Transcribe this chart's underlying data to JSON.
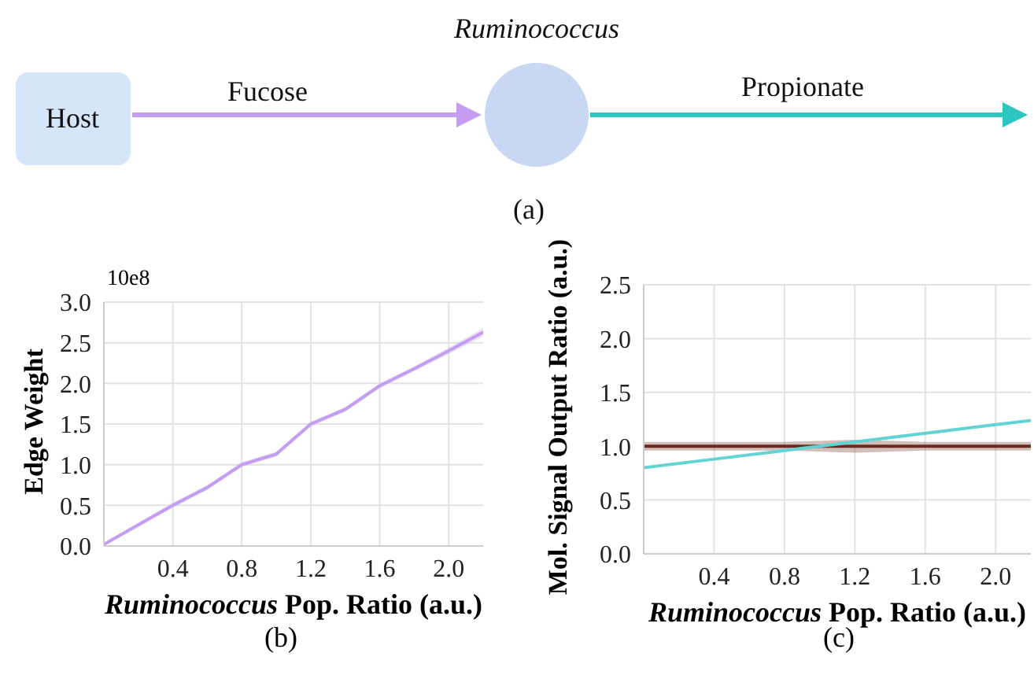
{
  "chart_data": [
    {
      "type": "other",
      "annotations": [
        "Ruminococcus",
        "Host",
        "Fucose",
        "Propionate",
        "(a)"
      ]
    },
    {
      "type": "line",
      "xlabel": "Ruminococcus Pop. Ratio (a.u.)",
      "ylabel": "Edge Weight",
      "annotations": [
        "10e8",
        "(b)"
      ],
      "xlim": [
        0,
        2.2
      ],
      "xticks": [
        0.4,
        0.8,
        1.2,
        1.6,
        {
          "value": 2,
          "label": "2.0"
        }
      ],
      "ylim": [
        0,
        3
      ],
      "yticks": [
        {
          "value": 0,
          "label": "0.0"
        },
        0.5,
        {
          "value": 1,
          "label": "1.0"
        },
        1.5,
        {
          "value": 2,
          "label": "2.0"
        },
        2.5,
        {
          "value": 3,
          "label": "3.0"
        }
      ],
      "grid": true,
      "x": [
        0,
        0.2,
        0.4,
        0.6,
        0.8,
        1.0,
        1.2,
        1.4,
        1.6,
        1.8,
        2.0,
        2.2
      ],
      "series": [
        {
          "color": "#c39ef0",
          "values": [
            0.02,
            0.26,
            0.5,
            0.72,
            1.0,
            1.13,
            1.5,
            1.68,
            1.97,
            2.18,
            2.4,
            2.63
          ],
          "lower": [
            0.0,
            0.23,
            0.47,
            0.69,
            0.97,
            1.1,
            1.47,
            1.65,
            1.94,
            2.15,
            2.36,
            2.58
          ],
          "upper": [
            0.04,
            0.29,
            0.53,
            0.75,
            1.03,
            1.16,
            1.53,
            1.71,
            2.0,
            2.21,
            2.44,
            2.68
          ]
        }
      ]
    },
    {
      "type": "line",
      "xlabel": "Ruminococcus Pop. Ratio (a.u.)",
      "ylabel": "Mol. Signal Output Ratio (a.u.)",
      "annotations": [
        "(c)"
      ],
      "xlim": [
        0,
        2.2
      ],
      "xticks": [
        0.4,
        0.8,
        1.2,
        1.6,
        {
          "value": 2,
          "label": "2.0"
        }
      ],
      "ylim": [
        0,
        2.5
      ],
      "yticks": [
        {
          "value": 0,
          "label": "0.0"
        },
        0.5,
        {
          "value": 1,
          "label": "1.0"
        },
        1.5,
        {
          "value": 2,
          "label": "2.0"
        },
        2.5
      ],
      "grid": true,
      "x": [
        0,
        0.4,
        0.8,
        1.2,
        1.6,
        2.0,
        2.2
      ],
      "series": [
        {
          "color": "#6b2a1e",
          "values": [
            1.0,
            1.0,
            1.0,
            1.0,
            1.0,
            1.0,
            1.0
          ],
          "lower": [
            0.96,
            0.96,
            0.96,
            0.94,
            0.96,
            0.96,
            0.96
          ],
          "upper": [
            1.04,
            1.04,
            1.04,
            1.06,
            1.04,
            1.04,
            1.04
          ]
        },
        {
          "color": "#63d4d4",
          "values": [
            0.8,
            0.88,
            0.96,
            1.04,
            1.12,
            1.2,
            1.24
          ]
        }
      ]
    }
  ]
}
